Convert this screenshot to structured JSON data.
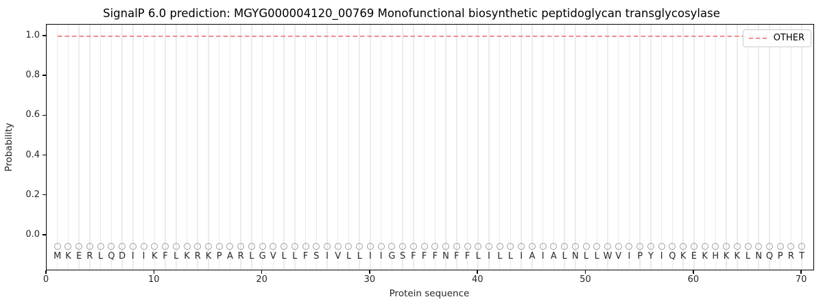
{
  "figure": {
    "title": "SignalP 6.0 prediction: MGYG000004120_00769 Monofunctional biosynthetic peptidoglycan transglycosylase"
  },
  "chart_data": {
    "type": "line",
    "title": "SignalP 6.0 prediction: MGYG000004120_00769 Monofunctional biosynthetic peptidoglycan transglycosylase",
    "xlabel": "Protein sequence",
    "ylabel": "Probability",
    "xlim": [
      0,
      71.07
    ],
    "ylim": [
      -0.172,
      1.058
    ],
    "x_ticks": [
      0,
      10,
      20,
      30,
      40,
      50,
      60,
      70
    ],
    "y_ticks": [
      "0.0",
      "0.2",
      "0.4",
      "0.6",
      "0.8",
      "1.0"
    ],
    "grid": "vertical gridline at each residue position",
    "legend_position": "upper right",
    "legend": {
      "entries": [
        {
          "label": "OTHER",
          "color": "#f18a8a",
          "line_style": "dashed"
        }
      ]
    },
    "sequence": "MKERLQDIIKFLKRKPARLGVLLFSIVLLIIGSFFFNFFLILLIAIALNLLWVIPYIQKEKHKKLNQPRT",
    "marker_y": -0.055,
    "letter_y": -0.108,
    "series": [
      {
        "name": "OTHER",
        "color": "#f18a8a",
        "style": "dashed",
        "x": [
          1,
          2,
          3,
          4,
          5,
          6,
          7,
          8,
          9,
          10,
          11,
          12,
          13,
          14,
          15,
          16,
          17,
          18,
          19,
          20,
          21,
          22,
          23,
          24,
          25,
          26,
          27,
          28,
          29,
          30,
          31,
          32,
          33,
          34,
          35,
          36,
          37,
          38,
          39,
          40,
          41,
          42,
          43,
          44,
          45,
          46,
          47,
          48,
          49,
          50,
          51,
          52,
          53,
          54,
          55,
          56,
          57,
          58,
          59,
          60,
          61,
          62,
          63,
          64,
          65,
          66,
          67,
          68,
          69,
          70
        ],
        "values": [
          1.0,
          1.0,
          1.0,
          1.0,
          1.0,
          1.0,
          1.0,
          1.0,
          1.0,
          1.0,
          1.0,
          1.0,
          1.0,
          1.0,
          1.0,
          1.0,
          1.0,
          1.0,
          1.0,
          1.0,
          1.0,
          1.0,
          1.0,
          1.0,
          1.0,
          1.0,
          1.0,
          1.0,
          1.0,
          1.0,
          1.0,
          1.0,
          1.0,
          1.0,
          1.0,
          1.0,
          1.0,
          1.0,
          1.0,
          1.0,
          1.0,
          1.0,
          1.0,
          1.0,
          1.0,
          1.0,
          1.0,
          1.0,
          1.0,
          1.0,
          1.0,
          1.0,
          1.0,
          1.0,
          1.0,
          1.0,
          1.0,
          1.0,
          1.0,
          1.0,
          1.0,
          1.0,
          1.0,
          1.0,
          1.0,
          1.0,
          1.0,
          1.0,
          1.0,
          1.0
        ]
      }
    ],
    "colors": {
      "line": "#f18a8a",
      "gridline": "#ebebeb",
      "marker_edge": "#9e9e9e",
      "letters": "#2b2b2b",
      "spines": "#000000",
      "text": "#262626"
    }
  }
}
